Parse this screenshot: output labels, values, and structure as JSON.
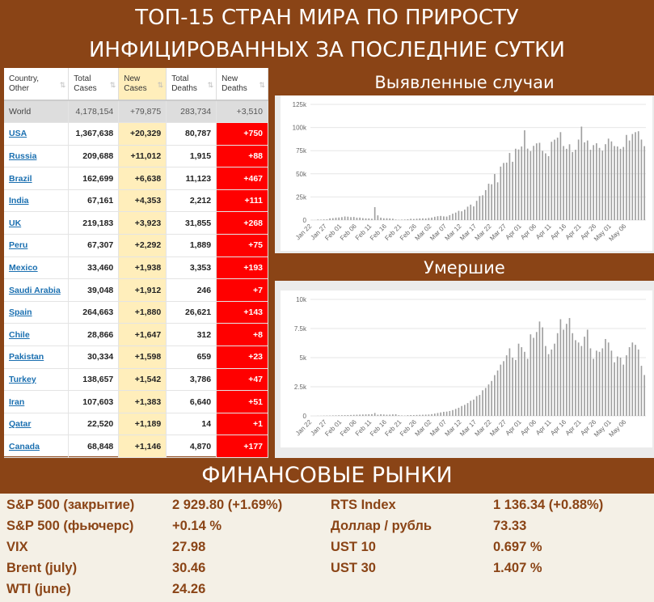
{
  "header": {
    "line1": "ТОП-15 СТРАН МИРА ПО ПРИРОСТУ",
    "line2": "ИНФИЦИРОВАННЫХ ЗА ПОСЛЕДНИЕ СУТКИ"
  },
  "table": {
    "headers": [
      {
        "l1": "Country,",
        "l2": "Other"
      },
      {
        "l1": "Total",
        "l2": "Cases"
      },
      {
        "l1": "New",
        "l2": "Cases"
      },
      {
        "l1": "Total",
        "l2": "Deaths"
      },
      {
        "l1": "New",
        "l2": "Deaths"
      }
    ],
    "world": {
      "country": "World",
      "total_cases": "4,178,154",
      "new_cases": "+79,875",
      "total_deaths": "283,734",
      "new_deaths": "+3,510"
    },
    "rows": [
      {
        "country": "USA",
        "total_cases": "1,367,638",
        "new_cases": "+20,329",
        "total_deaths": "80,787",
        "new_deaths": "+750"
      },
      {
        "country": "Russia",
        "total_cases": "209,688",
        "new_cases": "+11,012",
        "total_deaths": "1,915",
        "new_deaths": "+88"
      },
      {
        "country": "Brazil",
        "total_cases": "162,699",
        "new_cases": "+6,638",
        "total_deaths": "11,123",
        "new_deaths": "+467"
      },
      {
        "country": "India",
        "total_cases": "67,161",
        "new_cases": "+4,353",
        "total_deaths": "2,212",
        "new_deaths": "+111"
      },
      {
        "country": "UK",
        "total_cases": "219,183",
        "new_cases": "+3,923",
        "total_deaths": "31,855",
        "new_deaths": "+268"
      },
      {
        "country": "Peru",
        "total_cases": "67,307",
        "new_cases": "+2,292",
        "total_deaths": "1,889",
        "new_deaths": "+75"
      },
      {
        "country": "Mexico",
        "total_cases": "33,460",
        "new_cases": "+1,938",
        "total_deaths": "3,353",
        "new_deaths": "+193"
      },
      {
        "country": "Saudi Arabia",
        "total_cases": "39,048",
        "new_cases": "+1,912",
        "total_deaths": "246",
        "new_deaths": "+7"
      },
      {
        "country": "Spain",
        "total_cases": "264,663",
        "new_cases": "+1,880",
        "total_deaths": "26,621",
        "new_deaths": "+143"
      },
      {
        "country": "Chile",
        "total_cases": "28,866",
        "new_cases": "+1,647",
        "total_deaths": "312",
        "new_deaths": "+8"
      },
      {
        "country": "Pakistan",
        "total_cases": "30,334",
        "new_cases": "+1,598",
        "total_deaths": "659",
        "new_deaths": "+23"
      },
      {
        "country": "Turkey",
        "total_cases": "138,657",
        "new_cases": "+1,542",
        "total_deaths": "3,786",
        "new_deaths": "+47"
      },
      {
        "country": "Iran",
        "total_cases": "107,603",
        "new_cases": "+1,383",
        "total_deaths": "6,640",
        "new_deaths": "+51"
      },
      {
        "country": "Qatar",
        "total_cases": "22,520",
        "new_cases": "+1,189",
        "total_deaths": "14",
        "new_deaths": "+1"
      },
      {
        "country": "Canada",
        "total_cases": "68,848",
        "new_cases": "+1,146",
        "total_deaths": "4,870",
        "new_deaths": "+177"
      }
    ]
  },
  "chart_data": [
    {
      "type": "bar",
      "title": "Выявленные случаи",
      "ylim": [
        0,
        125000
      ],
      "yticks": [
        "0",
        "25k",
        "50k",
        "75k",
        "100k",
        "125k"
      ],
      "xticks": [
        "Jan 22",
        "Jan 27",
        "Feb 01",
        "Feb 06",
        "Feb 11",
        "Feb 16",
        "Feb 21",
        "Feb 26",
        "Mar 02",
        "Mar 07",
        "Mar 12",
        "Mar 17",
        "Mar 22",
        "Mar 27",
        "Apr 01",
        "Apr 06",
        "Apr 11",
        "Apr 16",
        "Apr 21",
        "Apr 26",
        "May 01",
        "May 06"
      ],
      "grid": true,
      "bar_color": "#a0a0a0",
      "values": [
        100,
        100,
        600,
        500,
        700,
        800,
        1900,
        2100,
        2600,
        2800,
        3200,
        3900,
        3700,
        3200,
        3400,
        2600,
        2700,
        2100,
        1900,
        1800,
        1500,
        14000,
        5100,
        2600,
        2000,
        2000,
        1800,
        1500,
        600,
        300,
        500,
        600,
        900,
        1400,
        1200,
        1500,
        1800,
        1900,
        1800,
        2300,
        2700,
        3600,
        4200,
        4500,
        4000,
        3800,
        5300,
        6900,
        8100,
        10000,
        9500,
        11300,
        14500,
        16700,
        14800,
        20800,
        26000,
        26800,
        32400,
        39300,
        38700,
        49800,
        40800,
        57800,
        61700,
        62100,
        72500,
        63000,
        77100,
        76300,
        79500,
        97000,
        77200,
        74500,
        80200,
        82900,
        83500,
        74800,
        72100,
        69100,
        84600,
        86900,
        89000,
        95000,
        80000,
        77000,
        81900,
        73500,
        76000,
        87000,
        101000,
        84000,
        86000,
        76000,
        81000,
        83000,
        78000,
        75000,
        82000,
        88000,
        85000,
        80000,
        79500,
        77000,
        79000,
        92000,
        86000,
        93000,
        95000,
        96000,
        87000,
        79875
      ]
    },
    {
      "type": "bar",
      "title": "Умершие",
      "ylim": [
        0,
        10000
      ],
      "yticks": [
        "0",
        "2.5k",
        "5k",
        "7.5k",
        "10k"
      ],
      "xticks": [
        "Jan 22",
        "Jan 27",
        "Feb 01",
        "Feb 06",
        "Feb 11",
        "Feb 16",
        "Feb 21",
        "Feb 26",
        "Mar 02",
        "Mar 07",
        "Mar 12",
        "Mar 17",
        "Mar 22",
        "Mar 27",
        "Apr 01",
        "Apr 06",
        "Apr 11",
        "Apr 16",
        "Apr 21",
        "Apr 26",
        "May 01",
        "May 06"
      ],
      "grid": true,
      "bar_color": "#a0a0a0",
      "values": [
        0,
        0,
        10,
        10,
        20,
        25,
        30,
        40,
        45,
        55,
        60,
        65,
        70,
        80,
        90,
        100,
        110,
        120,
        130,
        140,
        150,
        250,
        100,
        140,
        120,
        100,
        110,
        130,
        140,
        60,
        40,
        30,
        60,
        70,
        70,
        80,
        90,
        100,
        110,
        120,
        150,
        200,
        250,
        300,
        350,
        370,
        420,
        500,
        600,
        700,
        850,
        950,
        1100,
        1300,
        1400,
        1700,
        1800,
        2200,
        2400,
        2700,
        3000,
        3500,
        3900,
        4400,
        4700,
        5200,
        5800,
        5000,
        4800,
        6200,
        5900,
        5500,
        4900,
        7000,
        6700,
        7200,
        8100,
        7600,
        6000,
        5300,
        5700,
        6200,
        7100,
        8300,
        7400,
        7900,
        8400,
        7100,
        6500,
        6300,
        6000,
        6800,
        7400,
        5800,
        4900,
        5600,
        5500,
        5800,
        6600,
        6300,
        5600,
        4600,
        5100,
        5000,
        4400,
        5200,
        5900,
        6300,
        6100,
        5700,
        4300,
        3510
      ]
    }
  ],
  "finance": {
    "title": "ФИНАНСОВЫЕ РЫНКИ",
    "left": [
      {
        "label": "S&P 500 (закрытие)",
        "value": "2 929.80 (+1.69%)"
      },
      {
        "label": "S&P 500 (фьючерс)",
        "value": "+0.14 %"
      },
      {
        "label": "VIX",
        "value": "27.98"
      },
      {
        "label": "Brent (july)",
        "value": "30.46"
      },
      {
        "label": "WTI (june)",
        "value": "24.26"
      }
    ],
    "right": [
      {
        "label": "RTS Index",
        "value": "1 136.34 (+0.88%)"
      },
      {
        "label": "Доллар / рубль",
        "value": "73.33"
      },
      {
        "label": "UST 10",
        "value": "0.697 %"
      },
      {
        "label": "UST 30",
        "value": "1.407 %"
      }
    ]
  }
}
